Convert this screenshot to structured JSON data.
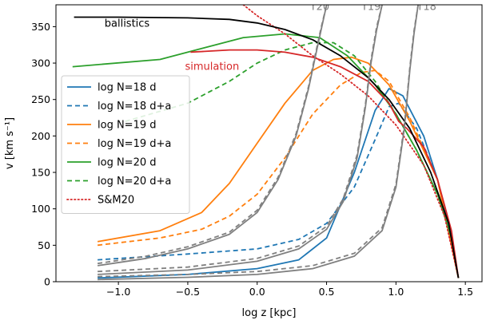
{
  "chart_data": {
    "type": "line",
    "xlabel": "log z [kpc]",
    "ylabel": "v [km s⁻¹]",
    "xlim": [
      -1.45,
      1.62
    ],
    "ylim": [
      0,
      380
    ],
    "xticks": [
      -1.0,
      -0.5,
      0.0,
      0.5,
      1.0,
      1.5
    ],
    "xtick_labels": [
      "−1.0",
      "−0.5",
      "0.0",
      "0.5",
      "1.0",
      "1.5"
    ],
    "yticks": [
      0,
      50,
      100,
      150,
      200,
      250,
      300,
      350
    ],
    "ytick_labels": [
      "0",
      "50",
      "100",
      "150",
      "200",
      "250",
      "300",
      "350"
    ],
    "grid": false,
    "legend_position": "center-left",
    "annotations": [
      {
        "text": "ballistics",
        "x": -1.1,
        "y": 350,
        "color": "#000000"
      },
      {
        "text": "simulation",
        "x": -0.52,
        "y": 291,
        "color": "#d62728"
      },
      {
        "text": "T20",
        "x": 0.38,
        "y": 373,
        "color": "#808080"
      },
      {
        "text": "T19",
        "x": 0.75,
        "y": 373,
        "color": "#808080"
      },
      {
        "text": "T18",
        "x": 1.15,
        "y": 373,
        "color": "#808080"
      }
    ],
    "series": [
      {
        "name": "log N=18 d",
        "color": "#1f77b4",
        "dash": "solid",
        "x": [
          -1.15,
          -0.5,
          0.0,
          0.3,
          0.5,
          0.7,
          0.85,
          0.95,
          1.05,
          1.2,
          1.3,
          1.4,
          1.45
        ],
        "y": [
          5,
          10,
          18,
          30,
          60,
          150,
          235,
          265,
          255,
          200,
          140,
          60,
          5
        ]
      },
      {
        "name": "log N=18 d+a",
        "color": "#1f77b4",
        "dash": "dashed",
        "x": [
          -1.15,
          -0.5,
          0.0,
          0.3,
          0.5,
          0.7,
          0.85,
          0.95,
          1.02,
          1.15,
          1.3,
          1.4,
          1.45
        ],
        "y": [
          30,
          38,
          45,
          58,
          80,
          130,
          195,
          240,
          245,
          210,
          140,
          60,
          5
        ]
      },
      {
        "name": "log N=19 d",
        "color": "#ff7f0e",
        "dash": "solid",
        "x": [
          -1.15,
          -0.7,
          -0.4,
          -0.2,
          0.0,
          0.2,
          0.4,
          0.55,
          0.68,
          0.8,
          0.95,
          1.1,
          1.3,
          1.45
        ],
        "y": [
          55,
          70,
          95,
          135,
          190,
          245,
          290,
          305,
          308,
          300,
          270,
          220,
          140,
          5
        ]
      },
      {
        "name": "log N=19 d+a",
        "color": "#ff7f0e",
        "dash": "dashed",
        "x": [
          -1.15,
          -0.7,
          -0.4,
          -0.2,
          0.0,
          0.2,
          0.4,
          0.6,
          0.75,
          0.85,
          0.95,
          1.1,
          1.3,
          1.45
        ],
        "y": [
          50,
          60,
          72,
          90,
          120,
          170,
          230,
          270,
          287,
          290,
          275,
          225,
          140,
          5
        ]
      },
      {
        "name": "log N=20 d",
        "color": "#2ca02c",
        "dash": "solid",
        "x": [
          -1.33,
          -0.7,
          -0.4,
          -0.1,
          0.2,
          0.45,
          0.65,
          0.85,
          1.0,
          1.15,
          1.3,
          1.4,
          1.45
        ],
        "y": [
          295,
          305,
          320,
          335,
          340,
          335,
          310,
          270,
          230,
          180,
          120,
          60,
          5
        ]
      },
      {
        "name": "log N=20 d+a",
        "color": "#2ca02c",
        "dash": "dashed",
        "x": [
          -0.95,
          -0.5,
          -0.2,
          0.0,
          0.2,
          0.4,
          0.55,
          0.7,
          0.85,
          1.0,
          1.15,
          1.3,
          1.4,
          1.45
        ],
        "y": [
          220,
          245,
          275,
          300,
          318,
          328,
          328,
          310,
          275,
          230,
          180,
          120,
          60,
          5
        ]
      },
      {
        "name": "S&M20",
        "color": "#d62728",
        "dash": "dotted",
        "x": [
          -0.1,
          0.0,
          0.2,
          0.4,
          0.6,
          0.8,
          1.0,
          1.2,
          1.35,
          1.45
        ],
        "y": [
          380,
          365,
          340,
          310,
          285,
          255,
          215,
          160,
          90,
          5
        ]
      },
      {
        "name": "",
        "color": "#d62728",
        "dash": "solid",
        "x": [
          -0.48,
          -0.2,
          0.0,
          0.2,
          0.4,
          0.6,
          0.8,
          0.95,
          1.02,
          1.08,
          1.2,
          1.3,
          1.4,
          1.45
        ],
        "y": [
          315,
          318,
          318,
          315,
          308,
          295,
          275,
          245,
          220,
          210,
          185,
          140,
          70,
          5
        ]
      },
      {
        "name": "",
        "color": "#000000",
        "dash": "solid",
        "x": [
          -1.32,
          -1.0,
          -0.5,
          -0.2,
          0.0,
          0.2,
          0.4,
          0.6,
          0.8,
          0.95,
          1.1,
          1.25,
          1.38,
          1.45
        ],
        "y": [
          363,
          363,
          362,
          360,
          355,
          346,
          332,
          310,
          280,
          250,
          210,
          150,
          80,
          5
        ]
      },
      {
        "name": "",
        "color": "#808080",
        "dash": "solid",
        "x": [
          -1.15,
          -0.8,
          -0.5,
          -0.2,
          0.0,
          0.15,
          0.28,
          0.37,
          0.42,
          0.46,
          0.5
        ],
        "y": [
          22,
          32,
          45,
          65,
          95,
          140,
          200,
          265,
          310,
          345,
          380
        ]
      },
      {
        "name": "",
        "color": "#808080",
        "dash": "dashed",
        "x": [
          -1.15,
          -0.8,
          -0.5,
          -0.2,
          0.0,
          0.15,
          0.28,
          0.37,
          0.42,
          0.46,
          0.5
        ],
        "y": [
          25,
          35,
          48,
          68,
          98,
          143,
          203,
          268,
          313,
          348,
          380
        ]
      },
      {
        "name": "",
        "color": "#808080",
        "dash": "solid",
        "x": [
          -1.15,
          -0.5,
          0.0,
          0.3,
          0.5,
          0.62,
          0.72,
          0.78,
          0.82,
          0.86,
          0.9
        ],
        "y": [
          10,
          16,
          28,
          45,
          72,
          110,
          170,
          240,
          300,
          345,
          380
        ]
      },
      {
        "name": "",
        "color": "#808080",
        "dash": "dashed",
        "x": [
          -1.15,
          -0.5,
          0.0,
          0.3,
          0.5,
          0.62,
          0.72,
          0.78,
          0.82,
          0.86,
          0.9
        ],
        "y": [
          14,
          20,
          32,
          49,
          76,
          114,
          174,
          244,
          304,
          349,
          380
        ]
      },
      {
        "name": "",
        "color": "#808080",
        "dash": "solid",
        "x": [
          -1.15,
          -0.5,
          0.0,
          0.4,
          0.7,
          0.9,
          1.0,
          1.06,
          1.1,
          1.13,
          1.16
        ],
        "y": [
          3,
          6,
          10,
          18,
          35,
          70,
          130,
          210,
          290,
          340,
          380
        ]
      },
      {
        "name": "",
        "color": "#808080",
        "dash": "dashed",
        "x": [
          -1.15,
          -0.5,
          0.0,
          0.4,
          0.7,
          0.9,
          1.0,
          1.06,
          1.1,
          1.13,
          1.16
        ],
        "y": [
          7,
          10,
          14,
          22,
          39,
          74,
          134,
          214,
          294,
          344,
          380
        ]
      }
    ]
  }
}
